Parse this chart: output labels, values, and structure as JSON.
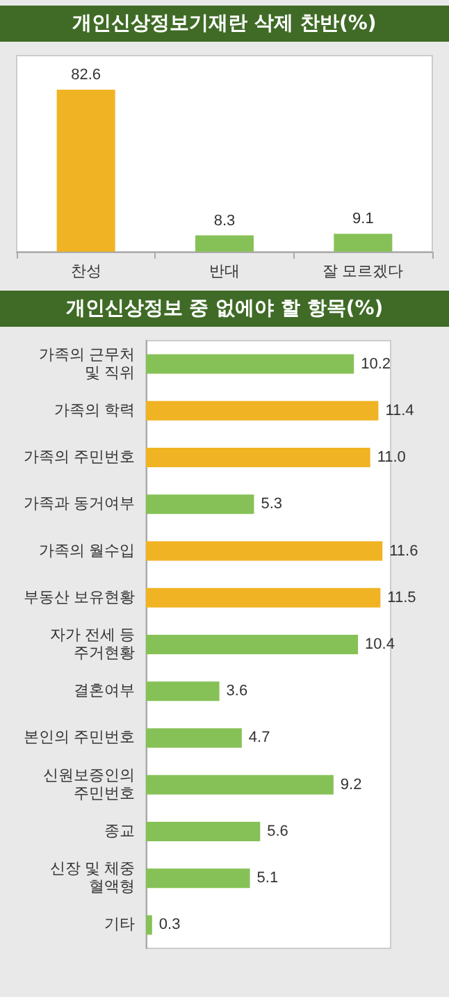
{
  "chart_data": [
    {
      "type": "bar",
      "title": "개인신상정보기재란 삭제 찬반(%)",
      "categories": [
        "찬성",
        "반대",
        "잘 모르겠다"
      ],
      "values": [
        82.6,
        8.3,
        9.1
      ],
      "colors": [
        "#f0b323",
        "#86c157",
        "#86c157"
      ],
      "data_labels": true
    },
    {
      "type": "bar",
      "orientation": "horizontal",
      "title": "개인신상정보 중 없에야 할 항목(%)",
      "categories": [
        "가족의 근무처\n및 직위",
        "가족의 학력",
        "가족의 주민번호",
        "가족과 동거여부",
        "가족의 월수입",
        "부동산 보유현황",
        "자가 전세 등\n주거현황",
        "결혼여부",
        "본인의 주민번호",
        "신원보증인의\n주민번호",
        "종교",
        "신장 및 체중\n혈액형",
        "기타"
      ],
      "values": [
        10.2,
        11.4,
        11.0,
        5.3,
        11.6,
        11.5,
        10.4,
        3.6,
        4.7,
        9.2,
        5.6,
        5.1,
        0.3
      ],
      "colors": [
        "#86c157",
        "#f0b323",
        "#f0b323",
        "#86c157",
        "#f0b323",
        "#f0b323",
        "#86c157",
        "#86c157",
        "#86c157",
        "#86c157",
        "#86c157",
        "#86c157",
        "#86c157"
      ],
      "value_labels": [
        "10.2",
        "11.4",
        "11.0",
        "5.3",
        "11.6",
        "11.5",
        "10.4",
        "3.6",
        "4.7",
        "9.2",
        "5.6",
        "5.1",
        "0.3"
      ]
    }
  ]
}
